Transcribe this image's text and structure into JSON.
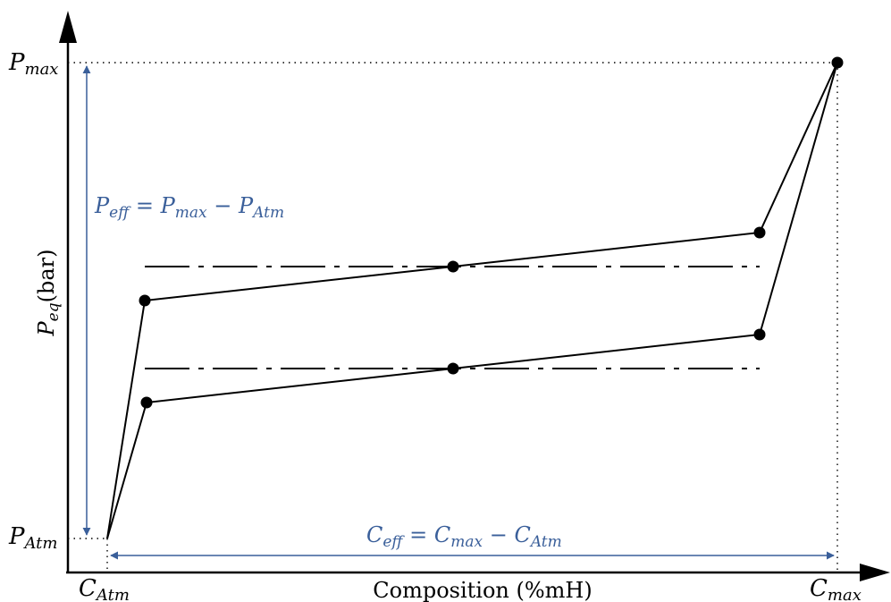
{
  "labels": {
    "p_max_main": "P",
    "p_max_sub": "max",
    "p_atm_main": "P",
    "p_atm_sub": "Atm",
    "c_atm_main": "C",
    "c_atm_sub": "Atm",
    "c_max_main": "C",
    "c_max_sub": "max",
    "y_axis_main": "P",
    "y_axis_sub": "eq",
    "y_axis_unit": "(bar)",
    "x_axis_title": "Composition (%mH)",
    "p_eff": {
      "lhs": "P",
      "lhs_sub": "eff",
      "eq": " = ",
      "a": "P",
      "a_sub": "max",
      "minus": " − ",
      "b": "P",
      "b_sub": "Atm"
    },
    "c_eff": {
      "lhs": "C",
      "lhs_sub": "eff",
      "eq": " = ",
      "a": "C",
      "a_sub": "max",
      "minus": " − ",
      "b": "C",
      "b_sub": "Atm"
    }
  },
  "colors": {
    "ink": "#000000",
    "accent": "#3a5f9a"
  }
}
